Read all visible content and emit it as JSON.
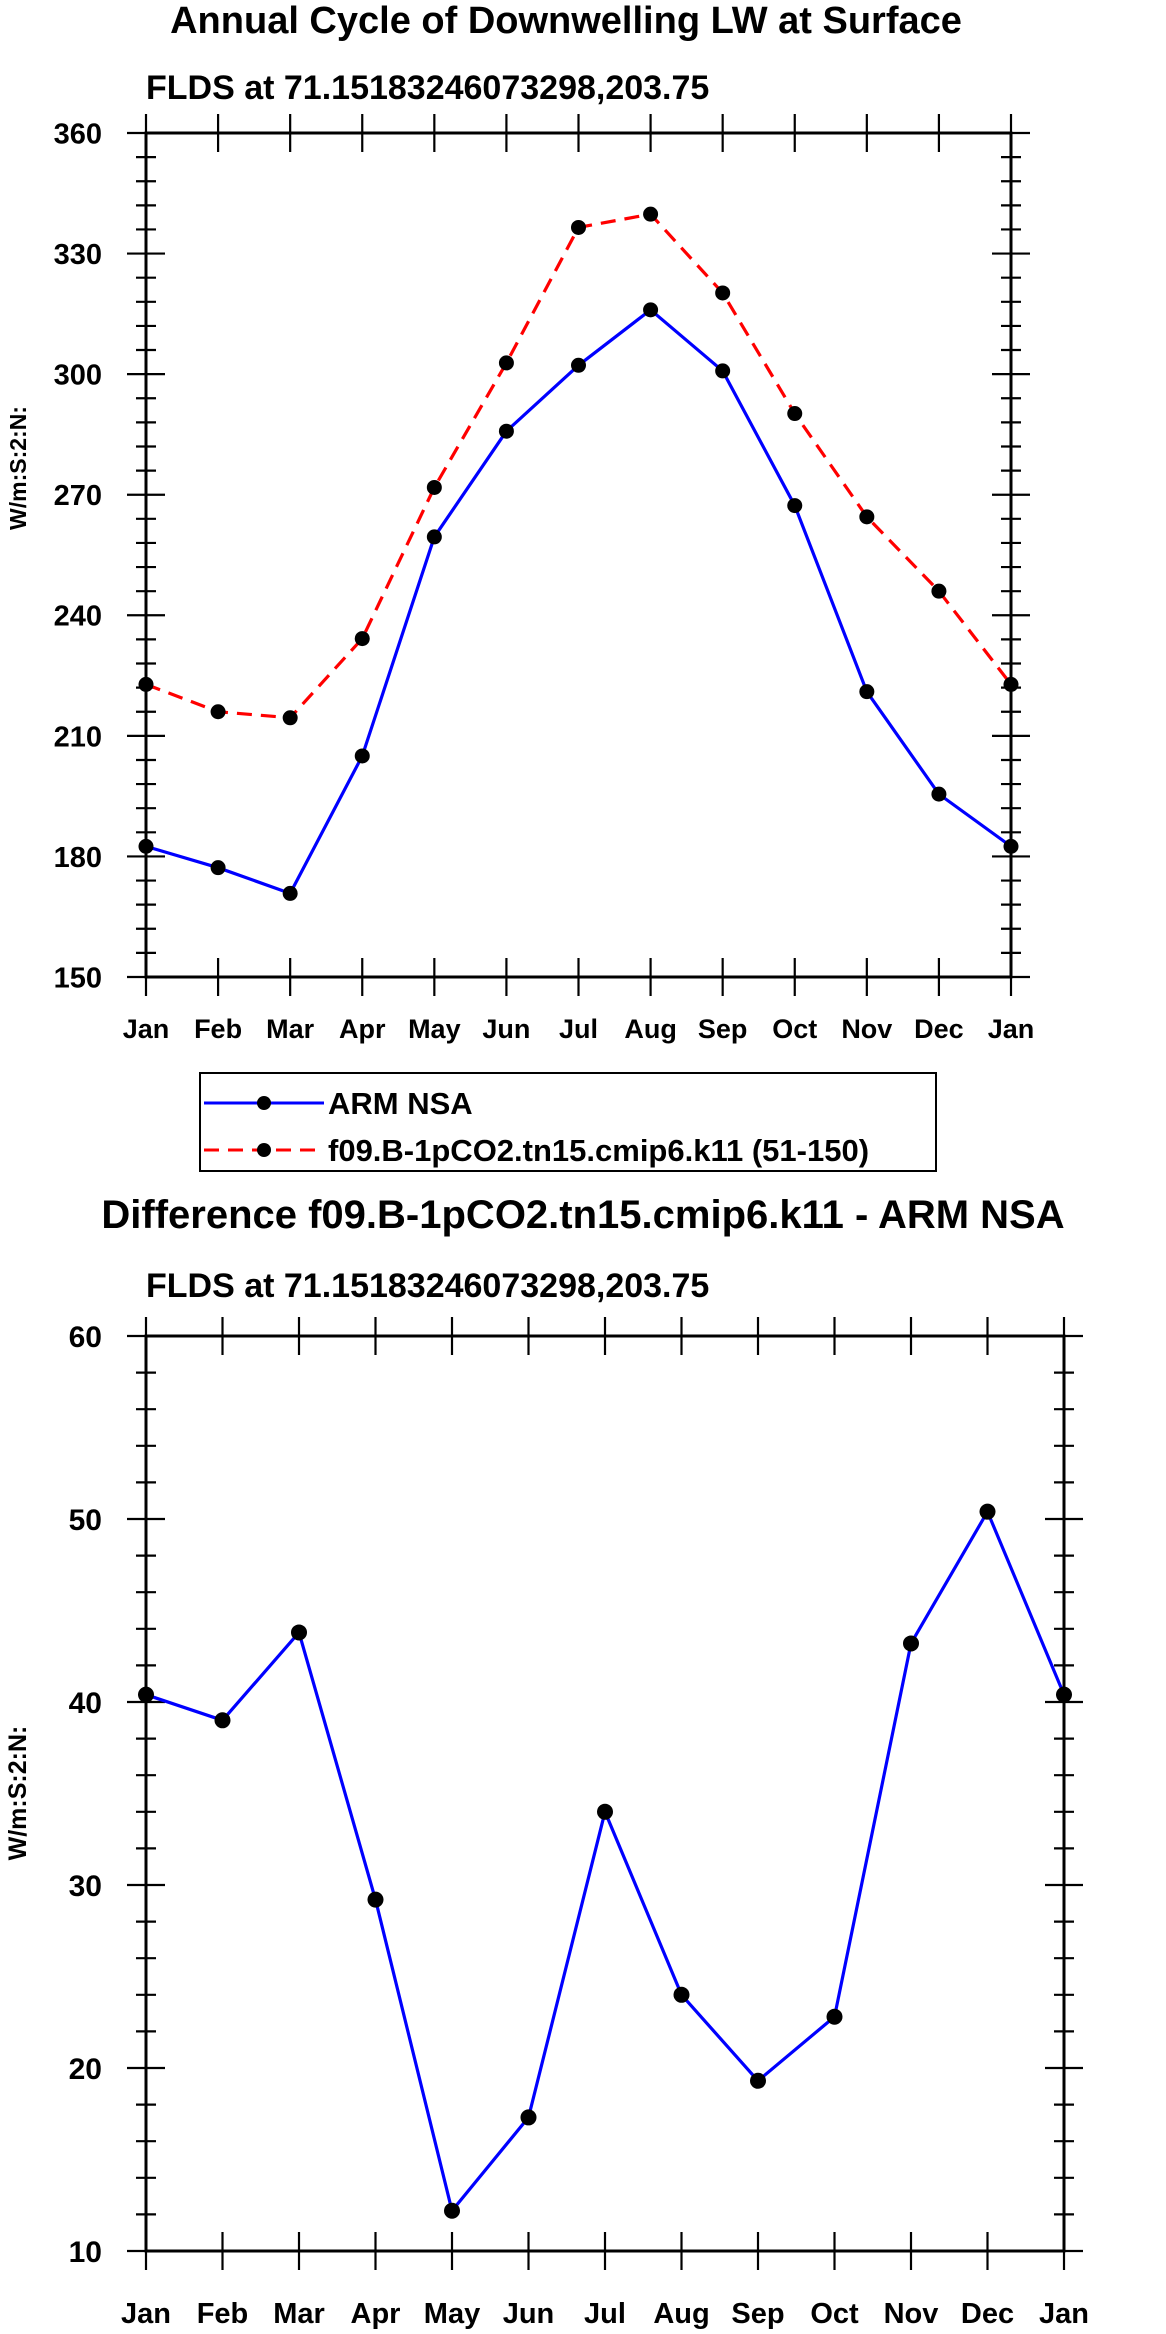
{
  "chart_data": [
    {
      "type": "line",
      "title": "Annual Cycle of Downwelling LW at Surface",
      "subtitle": "FLDS at 71.15183246073298,203.75",
      "xlabel": "",
      "ylabel": "W/m:S:2:N:",
      "categories": [
        "Jan",
        "Feb",
        "Mar",
        "Apr",
        "May",
        "Jun",
        "Jul",
        "Aug",
        "Sep",
        "Oct",
        "Nov",
        "Dec",
        "Jan"
      ],
      "ylim": [
        150,
        360
      ],
      "yticks": [
        150,
        180,
        210,
        240,
        270,
        300,
        330,
        360
      ],
      "ytick_labels": [
        "150",
        "180",
        "210",
        "240",
        "270",
        "300",
        "330",
        "360"
      ],
      "minor_step": 6,
      "series": [
        {
          "name": "ARM NSA",
          "color": "#0000ff",
          "dash": "solid",
          "values": [
            182.5,
            177.2,
            170.8,
            205.0,
            259.5,
            285.8,
            302.2,
            316.0,
            300.8,
            267.3,
            221.0,
            195.5,
            182.5
          ]
        },
        {
          "name": "f09.B-1pCO2.tn15.cmip6.k11 (51-150)",
          "color": "#ff0000",
          "dash": "dashed",
          "values": [
            222.8,
            216.0,
            214.5,
            234.2,
            271.8,
            302.8,
            336.5,
            339.8,
            320.2,
            290.2,
            264.5,
            246.0,
            222.8
          ]
        }
      ],
      "legend": {
        "position": "bottom-center",
        "entries": [
          "ARM NSA",
          "f09.B-1pCO2.tn15.cmip6.k11 (51-150)"
        ]
      },
      "grid": false
    },
    {
      "type": "line",
      "title": "Difference f09.B-1pCO2.tn15.cmip6.k11 - ARM NSA",
      "subtitle": "FLDS at 71.15183246073298,203.75",
      "xlabel": "",
      "ylabel": "W/m:S:2:N:",
      "categories": [
        "Jan",
        "Feb",
        "Mar",
        "Apr",
        "May",
        "Jun",
        "Jul",
        "Aug",
        "Sep",
        "Oct",
        "Nov",
        "Dec",
        "Jan"
      ],
      "ylim": [
        10,
        60
      ],
      "yticks": [
        10,
        20,
        30,
        40,
        50,
        60
      ],
      "ytick_labels": [
        "10",
        "20",
        "30",
        "40",
        "50",
        "60"
      ],
      "minor_step": 2,
      "series": [
        {
          "name": "Difference",
          "color": "#0000ff",
          "dash": "solid",
          "values": [
            40.4,
            39.0,
            43.8,
            29.2,
            12.2,
            17.3,
            34.0,
            24.0,
            19.3,
            22.8,
            43.2,
            50.4,
            40.4
          ]
        }
      ],
      "grid": false
    }
  ]
}
